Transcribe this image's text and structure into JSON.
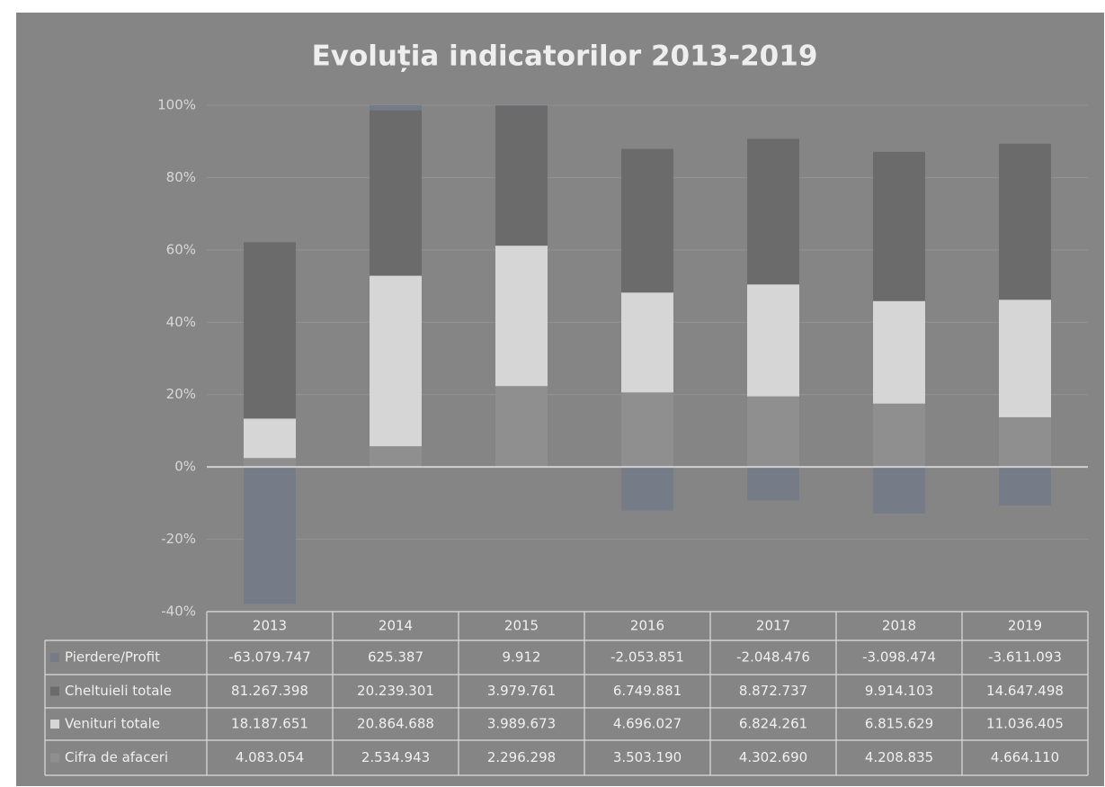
{
  "chart_data": {
    "type": "bar",
    "stacking": "percent",
    "title": "Evoluția indicatorilor 2013-2019",
    "categories": [
      "2013",
      "2014",
      "2015",
      "2016",
      "2017",
      "2018",
      "2019"
    ],
    "series": [
      {
        "name": "Pierdere/Profit",
        "color": "#757c88",
        "values": [
          -63079747,
          625387,
          9912,
          -2053851,
          -2048476,
          -3098474,
          -3611093
        ],
        "value_labels": [
          "-63.079.747",
          "625.387",
          "9.912",
          "-2.053.851",
          "-2.048.476",
          "-3.098.474",
          "-3.611.093"
        ]
      },
      {
        "name": "Cheltuieli totale",
        "color": "#6b6b6b",
        "values": [
          81267398,
          20239301,
          3979761,
          6749881,
          8872737,
          9914103,
          14647498
        ],
        "value_labels": [
          "81.267.398",
          "20.239.301",
          "3.979.761",
          "6.749.881",
          "8.872.737",
          "9.914.103",
          "14.647.498"
        ]
      },
      {
        "name": "Venituri totale",
        "color": "#d6d6d6",
        "values": [
          18187651,
          20864688,
          3989673,
          4696027,
          6824261,
          6815629,
          11036405
        ],
        "value_labels": [
          "18.187.651",
          "20.864.688",
          "3.989.673",
          "4.696.027",
          "6.824.261",
          "6.815.629",
          "11.036.405"
        ]
      },
      {
        "name": "Cifra de afaceri",
        "color": "#8f8f8f",
        "values": [
          4083054,
          2534943,
          2296298,
          3503190,
          4302690,
          4208835,
          4664110
        ],
        "value_labels": [
          "4.083.054",
          "2.534.943",
          "2.296.298",
          "3.503.190",
          "4.302.690",
          "4.208.835",
          "4.664.110"
        ]
      }
    ],
    "ylim": [
      -40,
      100
    ],
    "yticks": [
      {
        "value": -40,
        "label": "-40%"
      },
      {
        "value": -20,
        "label": "-20%"
      },
      {
        "value": 0,
        "label": "0%"
      },
      {
        "value": 20,
        "label": "20%"
      },
      {
        "value": 40,
        "label": "40%"
      },
      {
        "value": 60,
        "label": "60%"
      },
      {
        "value": 80,
        "label": "80%"
      },
      {
        "value": 100,
        "label": "100%"
      }
    ],
    "grid": true
  }
}
